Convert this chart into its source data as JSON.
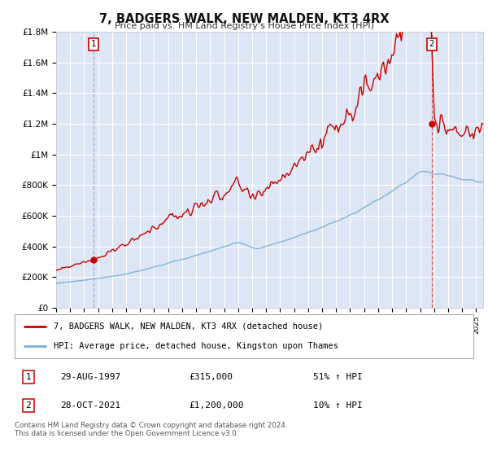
{
  "title": "7, BADGERS WALK, NEW MALDEN, KT3 4RX",
  "subtitle": "Price paid vs. HM Land Registry's House Price Index (HPI)",
  "legend_line1": "7, BADGERS WALK, NEW MALDEN, KT3 4RX (detached house)",
  "legend_line2": "HPI: Average price, detached house, Kingston upon Thames",
  "sale1_date": "29-AUG-1997",
  "sale1_price": "£315,000",
  "sale1_hpi": "51% ↑ HPI",
  "sale1_year": 1997.66,
  "sale1_value": 315000,
  "sale2_date": "28-OCT-2021",
  "sale2_price": "£1,200,000",
  "sale2_hpi": "10% ↑ HPI",
  "sale2_year": 2021.83,
  "sale2_value": 1200000,
  "xmin": 1995,
  "xmax": 2025.5,
  "ymin": 0,
  "ymax": 1800000,
  "fig_bg": "#ffffff",
  "plot_bg_color": "#dce6f5",
  "red_line_color": "#cc0000",
  "blue_line_color": "#7bafd4",
  "grid_color": "#ffffff",
  "vline_color": "#aaaacc",
  "footer": "Contains HM Land Registry data © Crown copyright and database right 2024.\nThis data is licensed under the Open Government Licence v3.0."
}
